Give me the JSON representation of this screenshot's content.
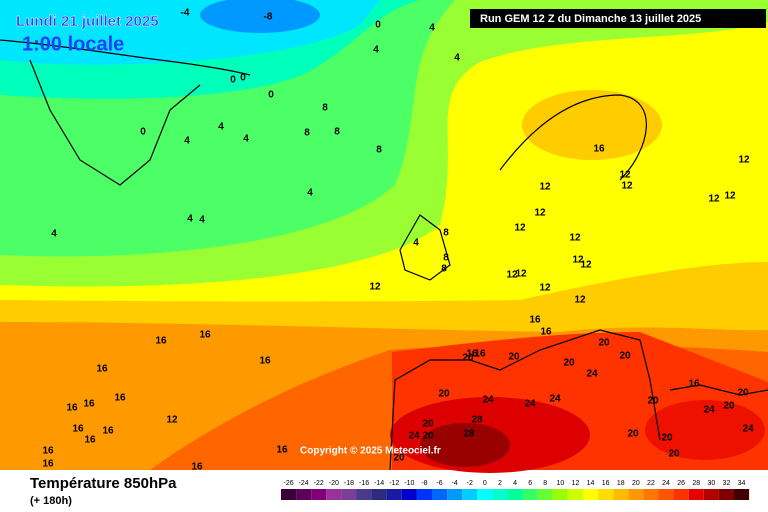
{
  "header": {
    "date": "Lundi 21 juillet 2025",
    "time": "1:00 locale",
    "run": "Run GEM 12 Z du Dimanche 13 juillet 2025"
  },
  "copyright": "Copyright © 2025 Meteociel.fr",
  "footer": {
    "title": "Température 850hPa",
    "lead": "(+ 180h)"
  },
  "legend": {
    "ticks": [
      -26,
      -24,
      -22,
      -20,
      -18,
      -16,
      -14,
      -12,
      -10,
      -8,
      -6,
      -4,
      -2,
      0,
      2,
      4,
      6,
      8,
      10,
      12,
      14,
      16,
      18,
      20,
      22,
      24,
      26,
      28,
      30,
      32,
      34
    ],
    "colors": [
      "#3a0038",
      "#5c005c",
      "#80007a",
      "#993399",
      "#7a3f99",
      "#4b3a8c",
      "#2b2b80",
      "#1a1aa6",
      "#0000cc",
      "#0033ff",
      "#0066ff",
      "#0099ff",
      "#00ccff",
      "#00ffff",
      "#00ffcc",
      "#00ff99",
      "#33ff66",
      "#66ff33",
      "#99ff00",
      "#ccff00",
      "#ffff00",
      "#ffdd00",
      "#ffbb00",
      "#ff9900",
      "#ff7700",
      "#ff5500",
      "#ff3300",
      "#e60000",
      "#b30000",
      "#800000",
      "#400000"
    ]
  },
  "contour_labels": [
    -4,
    -8,
    0,
    4,
    4,
    4,
    0,
    0,
    0,
    8,
    4,
    8,
    8,
    4,
    0,
    4,
    8,
    16,
    12,
    12,
    12,
    12,
    4,
    12,
    12,
    12,
    4,
    4,
    4,
    12,
    8,
    4,
    12,
    8,
    12,
    12,
    12,
    12,
    12,
    8,
    12,
    12,
    16,
    16,
    16,
    16,
    16,
    16,
    20,
    20,
    20,
    20,
    20,
    16,
    16,
    24,
    16,
    16,
    24,
    20,
    24,
    24,
    20,
    24,
    20,
    20,
    16,
    16,
    12,
    28,
    20,
    24,
    16,
    16,
    16,
    24,
    20,
    28,
    20,
    20,
    16,
    16,
    20,
    20,
    16,
    16
  ]
}
